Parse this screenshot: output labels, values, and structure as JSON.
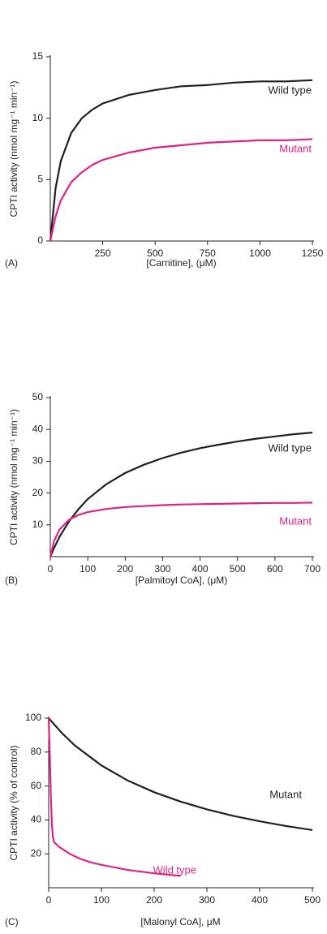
{
  "chart_data": [
    {
      "type": "line",
      "panel": "(A)",
      "x_label": "[Carnitine], (μM)",
      "y_label": "CPTI activity (nmol mg⁻¹ min⁻¹)",
      "xlim": [
        0,
        1250
      ],
      "ylim": [
        0,
        15
      ],
      "xticks": [
        250,
        500,
        750,
        1000,
        1250
      ],
      "yticks": [
        0,
        5,
        10,
        15
      ],
      "series": [
        {
          "name": "Wild type",
          "color": "#231f20",
          "x": [
            0,
            25,
            50,
            100,
            150,
            200,
            250,
            375,
            500,
            625,
            750,
            875,
            1000,
            1125,
            1250
          ],
          "values": [
            0,
            4.3,
            6.5,
            8.8,
            10.0,
            10.7,
            11.2,
            11.9,
            12.3,
            12.6,
            12.7,
            12.9,
            13.0,
            13.0,
            13.1
          ]
        },
        {
          "name": "Mutant",
          "color": "#e0218a",
          "x": [
            0,
            25,
            50,
            100,
            150,
            200,
            250,
            375,
            500,
            625,
            750,
            875,
            1000,
            1125,
            1250
          ],
          "values": [
            0,
            2.0,
            3.3,
            4.8,
            5.6,
            6.2,
            6.6,
            7.2,
            7.6,
            7.8,
            8.0,
            8.1,
            8.2,
            8.2,
            8.3
          ]
        }
      ]
    },
    {
      "type": "line",
      "panel": "(B)",
      "x_label": "[Palmitoyl CoA], (μM)",
      "y_label": "CPTI activity (nmol mg⁻¹ min⁻¹)",
      "xlim": [
        0,
        700
      ],
      "ylim": [
        0,
        50
      ],
      "xticks": [
        0,
        100,
        200,
        300,
        400,
        500,
        600,
        700
      ],
      "yticks": [
        10,
        20,
        30,
        40,
        50
      ],
      "series": [
        {
          "name": "Wild type",
          "color": "#231f20",
          "x": [
            0,
            10,
            25,
            50,
            75,
            100,
            150,
            200,
            250,
            300,
            350,
            400,
            450,
            500,
            550,
            600,
            650,
            700
          ],
          "values": [
            0,
            2.7,
            6.3,
            11.1,
            14.9,
            18.1,
            22.8,
            26.3,
            28.9,
            31.0,
            32.7,
            34.1,
            35.2,
            36.2,
            37.1,
            37.8,
            38.5,
            39.0
          ]
        },
        {
          "name": "Mutant",
          "color": "#e0218a",
          "x": [
            0,
            10,
            25,
            50,
            75,
            100,
            150,
            200,
            250,
            300,
            350,
            400,
            450,
            500,
            550,
            600,
            650,
            700
          ],
          "values": [
            0,
            4.9,
            8.6,
            11.6,
            13.1,
            14.0,
            15.0,
            15.6,
            15.9,
            16.2,
            16.4,
            16.5,
            16.6,
            16.7,
            16.8,
            16.9,
            16.9,
            17.0
          ]
        }
      ]
    },
    {
      "type": "line",
      "panel": "(C)",
      "x_label": "[Malonyl CoA],  μM",
      "y_label": "CPTI activity (% of control)",
      "xlim": [
        0,
        500
      ],
      "ylim": [
        0,
        100
      ],
      "xticks": [
        0,
        100,
        200,
        300,
        400,
        500
      ],
      "yticks": [
        20,
        40,
        60,
        80,
        100
      ],
      "series": [
        {
          "name": "Mutant",
          "color": "#231f20",
          "x": [
            0,
            25,
            50,
            100,
            150,
            200,
            250,
            300,
            350,
            400,
            450,
            500
          ],
          "values": [
            100,
            91.2,
            83.8,
            72.1,
            63.2,
            56.3,
            50.8,
            46.2,
            42.4,
            39.2,
            36.4,
            34.0
          ]
        },
        {
          "name": "Wild type",
          "color": "#e0218a",
          "x": [
            0,
            2,
            4,
            6,
            8,
            10,
            20,
            40,
            60,
            80,
            100,
            150,
            200,
            250
          ],
          "values": [
            100,
            80,
            55,
            38,
            30,
            27,
            24,
            20,
            17,
            15,
            13.5,
            10.5,
            8.5,
            7
          ]
        }
      ]
    }
  ]
}
